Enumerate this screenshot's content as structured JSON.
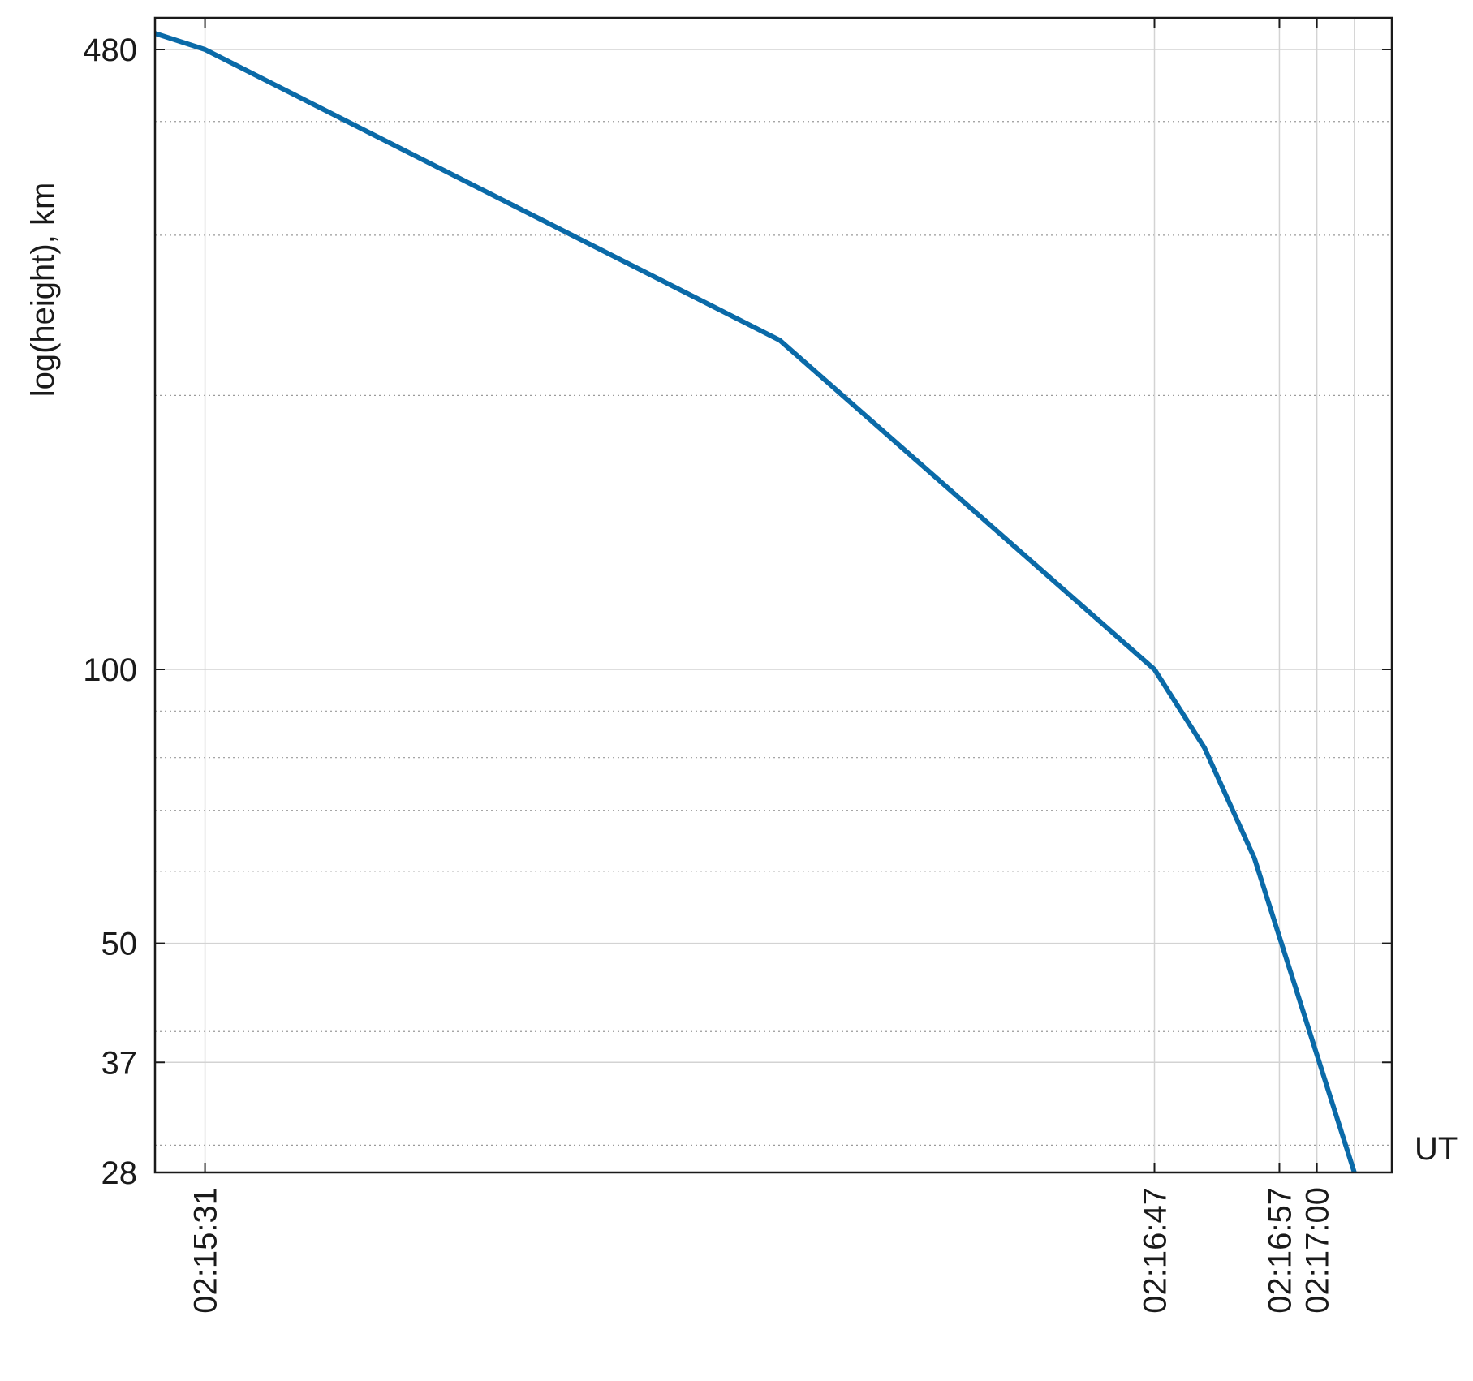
{
  "chart_data": {
    "type": "line",
    "title": "",
    "xlabel": "UT",
    "ylabel": "log(height), km",
    "y_scale": "log",
    "ylim": [
      28,
      520
    ],
    "xlim": [
      "02:15:27",
      "02:17:06"
    ],
    "grid": true,
    "line_color": "#0a6aa8",
    "x_ticks": [
      "02:15:31",
      "02:16:47",
      "02:16:57",
      "02:17:00"
    ],
    "x_extra_gridlines": [
      "02:17:03"
    ],
    "y_ticks": [
      28,
      37,
      50,
      100,
      480
    ],
    "y_minor_gridlines": [
      30,
      40,
      60,
      70,
      80,
      90,
      200,
      300,
      400
    ],
    "series": [
      {
        "x": [
          "02:15:27",
          "02:15:31",
          "02:16:17",
          "02:16:47",
          "02:16:51",
          "02:16:55",
          "02:17:03"
        ],
        "y": [
          500,
          480,
          230,
          100,
          82,
          62,
          28
        ]
      }
    ]
  }
}
